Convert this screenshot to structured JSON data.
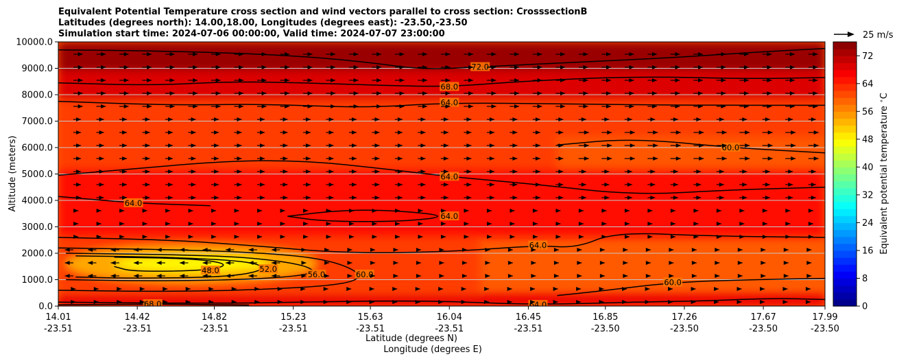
{
  "chart_data": {
    "type": "heatmap",
    "title_lines": [
      "Equivalent Potential Temperature cross section and wind vectors parallel to cross section: CrosssectionB",
      "Latitudes (degrees north): 14.00,18.00, Longitudes (degrees east): -23.50,-23.50",
      "Simulation start time: 2024-07-06 00:00:00, Valid time: 2024-07-07 23:00:00"
    ],
    "xlabel_lines": [
      "Latitude (degrees N)",
      "Longitude (degrees E)"
    ],
    "ylabel": "Altitude (meters)",
    "colorbar_label": "Equivalent potential temperature $^\\circ$C",
    "xlim": [
      14.01,
      17.99
    ],
    "ylim": [
      0,
      10000
    ],
    "clim": [
      0,
      76
    ],
    "x_ticks": [
      {
        "lat": "14.01",
        "lon": "-23.51",
        "x": 14.01
      },
      {
        "lat": "14.42",
        "lon": "-23.51",
        "x": 14.42
      },
      {
        "lat": "14.82",
        "lon": "-23.51",
        "x": 14.82
      },
      {
        "lat": "15.23",
        "lon": "-23.51",
        "x": 15.23
      },
      {
        "lat": "15.63",
        "lon": "-23.51",
        "x": 15.63
      },
      {
        "lat": "16.04",
        "lon": "-23.51",
        "x": 16.04
      },
      {
        "lat": "16.45",
        "lon": "-23.51",
        "x": 16.45
      },
      {
        "lat": "16.85",
        "lon": "-23.50",
        "x": 16.85
      },
      {
        "lat": "17.26",
        "lon": "-23.50",
        "x": 17.26
      },
      {
        "lat": "17.67",
        "lon": "-23.50",
        "x": 17.67
      },
      {
        "lat": "17.99",
        "lon": "-23.50",
        "x": 17.99
      }
    ],
    "y_ticks": [
      {
        "label": "0.0",
        "v": 0
      },
      {
        "label": "1000.0",
        "v": 1000
      },
      {
        "label": "2000.0",
        "v": 2000
      },
      {
        "label": "3000.0",
        "v": 3000
      },
      {
        "label": "4000.0",
        "v": 4000
      },
      {
        "label": "5000.0",
        "v": 5000
      },
      {
        "label": "6000.0",
        "v": 6000
      },
      {
        "label": "7000.0",
        "v": 7000
      },
      {
        "label": "8000.0",
        "v": 8000
      },
      {
        "label": "9000.0",
        "v": 9000
      },
      {
        "label": "10000.0",
        "v": 10000
      }
    ],
    "colorbar_ticks": [
      "0",
      "8",
      "16",
      "24",
      "32",
      "40",
      "48",
      "56",
      "64",
      "72"
    ],
    "colorbar_tick_values": [
      0,
      8,
      16,
      24,
      32,
      40,
      48,
      56,
      64,
      72
    ],
    "grid": "horizontal lines at y ticks",
    "quiver_key": {
      "label": "25 m/s",
      "speed": 25
    },
    "colors": {
      "field_base": "#ff5a00",
      "upper_red": "#cc0000",
      "orange_band": "#ff8c00",
      "dark_orange": "#ff4400",
      "yellow_core": "#ffd400",
      "green_core": "#b4ff3c",
      "contour": "#000000",
      "grid": "#c8c8c8"
    },
    "field_regions": [
      {
        "name": "top-red",
        "value": 74,
        "x": [
          14.01,
          17.99
        ],
        "y": [
          8900,
          10000
        ]
      },
      {
        "name": "upper-dark-orange",
        "value": 69,
        "x": [
          14.01,
          17.99
        ],
        "y": [
          7800,
          8900
        ]
      },
      {
        "name": "mid-orange",
        "value": 62,
        "x": [
          14.01,
          17.99
        ],
        "y": [
          5200,
          7800
        ]
      },
      {
        "name": "orange-lobe-east",
        "value": 60,
        "x": [
          16.6,
          17.99
        ],
        "y": [
          5000,
          6400
        ]
      },
      {
        "name": "lower-dark-orange",
        "value": 66,
        "x": [
          14.01,
          17.99
        ],
        "y": [
          2600,
          5200
        ]
      },
      {
        "name": "low-orange",
        "value": 62,
        "x": [
          14.01,
          16.2
        ],
        "y": [
          500,
          2600
        ]
      },
      {
        "name": "yellow-core",
        "value": 54,
        "x": [
          14.05,
          15.35
        ],
        "y": [
          900,
          2300
        ]
      },
      {
        "name": "green-core",
        "value": 48,
        "x": [
          14.3,
          15.1
        ],
        "y": [
          1300,
          1900
        ]
      },
      {
        "name": "surface-red",
        "value": 68,
        "x": [
          14.01,
          17.99
        ],
        "y": [
          0,
          450
        ]
      }
    ],
    "contours": [
      {
        "level": 72.0,
        "label": "72.0",
        "points": [
          [
            14.01,
            9700
          ],
          [
            14.6,
            9650
          ],
          [
            15.2,
            9500
          ],
          [
            15.6,
            9250
          ],
          [
            15.9,
            8950
          ],
          [
            16.2,
            9050
          ],
          [
            16.6,
            9200
          ],
          [
            17.2,
            9400
          ],
          [
            17.6,
            9600
          ],
          [
            17.99,
            9750
          ]
        ]
      },
      {
        "level": 68.0,
        "label": "68.0",
        "points": [
          [
            14.01,
            8450
          ],
          [
            14.5,
            8350
          ],
          [
            14.9,
            8500
          ],
          [
            15.3,
            8450
          ],
          [
            15.7,
            8350
          ],
          [
            16.04,
            8300
          ],
          [
            16.4,
            8500
          ],
          [
            17.0,
            8700
          ],
          [
            17.6,
            8600
          ],
          [
            17.99,
            8650
          ]
        ]
      },
      {
        "level": 64.0,
        "label": "64.0",
        "points": [
          [
            14.01,
            7750
          ],
          [
            14.6,
            7600
          ],
          [
            15.1,
            7650
          ],
          [
            15.6,
            7500
          ],
          [
            16.04,
            7700
          ],
          [
            16.6,
            7650
          ],
          [
            17.3,
            7600
          ],
          [
            17.99,
            7600
          ]
        ]
      },
      {
        "level": 64.0,
        "label": "64.0",
        "points": [
          [
            14.01,
            4950
          ],
          [
            14.4,
            5200
          ],
          [
            14.9,
            5500
          ],
          [
            15.3,
            5500
          ],
          [
            15.7,
            5200
          ],
          [
            16.04,
            4900
          ],
          [
            16.5,
            4600
          ],
          [
            17.0,
            4200
          ],
          [
            17.5,
            4400
          ],
          [
            17.99,
            4500
          ]
        ]
      },
      {
        "level": 64.0,
        "label": "64.0",
        "points": [
          [
            14.01,
            4150
          ],
          [
            14.4,
            3900
          ],
          [
            14.8,
            3800
          ]
        ]
      },
      {
        "level": 60.0,
        "label": "60.0",
        "points": [
          [
            16.6,
            6100
          ],
          [
            17.0,
            6350
          ],
          [
            17.5,
            6000
          ],
          [
            17.99,
            5800
          ]
        ]
      },
      {
        "level": 64.0,
        "label": "64.0",
        "points": [
          [
            15.2,
            3400
          ],
          [
            15.5,
            3650
          ],
          [
            15.8,
            3600
          ],
          [
            16.04,
            3400
          ],
          [
            15.8,
            3200
          ],
          [
            15.4,
            3200
          ],
          [
            15.2,
            3400
          ]
        ]
      },
      {
        "level": 64.0,
        "label": "64.0",
        "points": [
          [
            14.01,
            2600
          ],
          [
            14.6,
            2500
          ],
          [
            15.0,
            2300
          ],
          [
            15.5,
            2000
          ],
          [
            16.04,
            2050
          ],
          [
            16.5,
            2300
          ],
          [
            16.7,
            2200
          ],
          [
            16.9,
            2800
          ],
          [
            17.4,
            2650
          ],
          [
            17.99,
            2600
          ]
        ]
      },
      {
        "level": 60.0,
        "label": "60.0",
        "points": [
          [
            14.01,
            2200
          ],
          [
            14.5,
            2150
          ],
          [
            15.0,
            2050
          ],
          [
            15.4,
            1800
          ],
          [
            15.6,
            1200
          ],
          [
            15.5,
            800
          ],
          [
            15.0,
            600
          ],
          [
            14.5,
            550
          ],
          [
            14.01,
            600
          ]
        ]
      },
      {
        "level": 56.0,
        "label": "56.0",
        "points": [
          [
            14.05,
            2000
          ],
          [
            14.6,
            1950
          ],
          [
            15.0,
            1850
          ],
          [
            15.3,
            1550
          ],
          [
            15.35,
            1200
          ],
          [
            15.0,
            1000
          ],
          [
            14.5,
            950
          ],
          [
            14.05,
            1000
          ]
        ]
      },
      {
        "level": 52.0,
        "label": "52.0",
        "points": [
          [
            14.1,
            1900
          ],
          [
            14.6,
            1850
          ],
          [
            15.0,
            1700
          ],
          [
            15.1,
            1400
          ],
          [
            14.9,
            1100
          ],
          [
            14.4,
            1050
          ],
          [
            14.1,
            1100
          ]
        ]
      },
      {
        "level": 48.0,
        "label": "48.0",
        "points": [
          [
            14.3,
            1850
          ],
          [
            14.7,
            1800
          ],
          [
            14.9,
            1600
          ],
          [
            14.8,
            1350
          ],
          [
            14.4,
            1300
          ],
          [
            14.3,
            1500
          ]
        ]
      },
      {
        "level": 60.0,
        "label": "60.0",
        "points": [
          [
            16.6,
            400
          ],
          [
            16.8,
            550
          ],
          [
            17.2,
            900
          ],
          [
            17.6,
            1000
          ],
          [
            17.99,
            1050
          ]
        ]
      },
      {
        "level": 64.0,
        "label": "64.0",
        "points": [
          [
            14.01,
            150
          ],
          [
            14.8,
            100
          ],
          [
            15.3,
            150
          ],
          [
            15.7,
            200
          ],
          [
            16.04,
            180
          ],
          [
            16.5,
            50
          ],
          [
            17.0,
            150
          ],
          [
            17.4,
            200
          ],
          [
            17.7,
            300
          ],
          [
            17.99,
            250
          ]
        ]
      },
      {
        "level": 68.0,
        "label": "68.0",
        "points": [
          [
            14.01,
            50
          ],
          [
            14.5,
            80
          ],
          [
            15.0,
            40
          ]
        ]
      }
    ],
    "wind_vectors": "eastward (rightward) throughout, strongest in upper and mid levels; westward (leftward) low-level jet near 1500 m between 14.1 and 15.2"
  }
}
